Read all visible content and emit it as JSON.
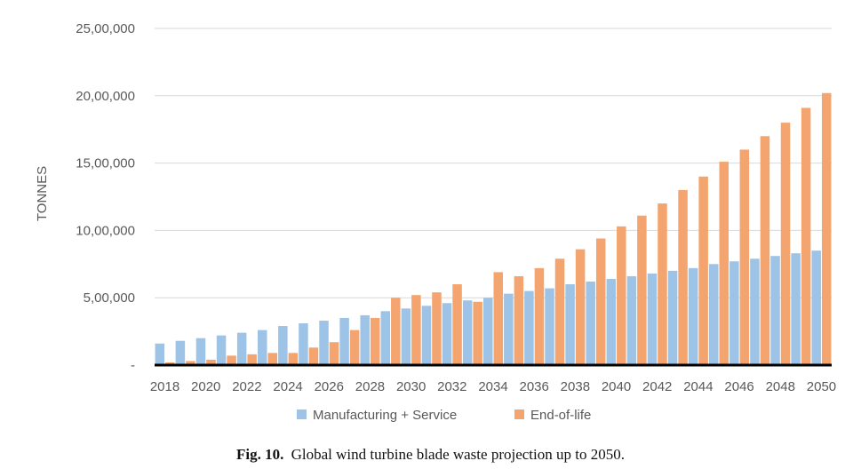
{
  "chart_data": {
    "type": "bar",
    "title": "",
    "xlabel": "",
    "ylabel": "TONNES",
    "ylim": [
      0,
      2500000
    ],
    "yticks": [
      0,
      500000,
      1000000,
      1500000,
      2000000,
      2500000
    ],
    "ytick_labels": [
      "-",
      "5,00,000",
      "10,00,000",
      "15,00,000",
      "20,00,000",
      "25,00,000"
    ],
    "categories": [
      "2018",
      "2019",
      "2020",
      "2021",
      "2022",
      "2023",
      "2024",
      "2025",
      "2026",
      "2027",
      "2028",
      "2029",
      "2030",
      "2031",
      "2032",
      "2033",
      "2034",
      "2035",
      "2036",
      "2037",
      "2038",
      "2039",
      "2040",
      "2041",
      "2042",
      "2043",
      "2044",
      "2045",
      "2046",
      "2047",
      "2048",
      "2049",
      "2050"
    ],
    "xtick_labels": [
      "2018",
      "2020",
      "2022",
      "2024",
      "2026",
      "2028",
      "2030",
      "2032",
      "2034",
      "2036",
      "2038",
      "2040",
      "2042",
      "2044",
      "2046",
      "2048",
      "2050"
    ],
    "grid": "horizontal",
    "legend": "bottom",
    "series": [
      {
        "name": "Manufacturing + Service",
        "color": "#9dc3e6",
        "values": [
          160000,
          180000,
          200000,
          220000,
          240000,
          260000,
          290000,
          310000,
          330000,
          350000,
          370000,
          400000,
          420000,
          440000,
          460000,
          480000,
          500000,
          530000,
          550000,
          570000,
          600000,
          620000,
          640000,
          660000,
          680000,
          700000,
          720000,
          750000,
          770000,
          790000,
          810000,
          830000,
          850000
        ]
      },
      {
        "name": "End-of-life",
        "color": "#f4a46e",
        "values": [
          20000,
          30000,
          40000,
          70000,
          80000,
          90000,
          90000,
          130000,
          170000,
          260000,
          350000,
          500000,
          520000,
          540000,
          600000,
          470000,
          690000,
          660000,
          720000,
          790000,
          860000,
          940000,
          1030000,
          1110000,
          1200000,
          1300000,
          1400000,
          1510000,
          1600000,
          1700000,
          1800000,
          1910000,
          2020000
        ]
      }
    ]
  },
  "caption": {
    "label": "Fig. 10.",
    "text": "Global wind turbine blade waste projection up to 2050."
  }
}
